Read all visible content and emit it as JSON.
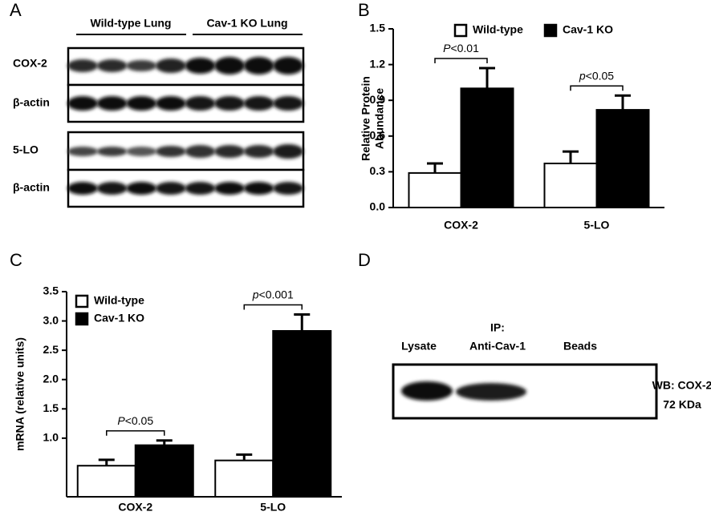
{
  "panel_labels": [
    "A",
    "B",
    "C",
    "D"
  ],
  "blot_a": {
    "groups": [
      "Wild-type Lung",
      "Cav-1 KO Lung"
    ],
    "rows": [
      "COX-2",
      "β-actin",
      "5-LO",
      "β-actin"
    ]
  },
  "blot_d": {
    "ip_label": "IP:",
    "lanes": [
      "Lysate",
      "Anti-Cav-1",
      "Beads"
    ],
    "wb_label": "WB: COX-2",
    "size_label": "72 KDa"
  },
  "chart_data": [
    {
      "type": "bar",
      "ylabel": [
        "Relative Protein",
        "Abundance"
      ],
      "categories": [
        "COX-2",
        "5-LO"
      ],
      "series": [
        {
          "name": "Wild-type",
          "color": "#ffffff",
          "values": [
            0.29,
            0.37
          ],
          "errors": [
            0.08,
            0.1
          ]
        },
        {
          "name": "Cav-1 KO",
          "color": "#000000",
          "values": [
            1.0,
            0.82
          ],
          "errors": [
            0.17,
            0.12
          ]
        }
      ],
      "annotations": [
        "P<0.01",
        "p<0.05"
      ],
      "ylim": [
        0,
        1.5
      ],
      "yticks": [
        {
          "value": 0,
          "label": "0.0"
        },
        0.3,
        0.6,
        0.9,
        1.2,
        1.5
      ],
      "legend": "top"
    },
    {
      "type": "bar",
      "ylabel": [
        "mRNA (relative units)"
      ],
      "categories": [
        "COX-2",
        "5-LO"
      ],
      "series": [
        {
          "name": "Wild-type",
          "color": "#ffffff",
          "values": [
            0.53,
            0.62
          ],
          "errors": [
            0.1,
            0.1
          ]
        },
        {
          "name": "Cav-1 KO",
          "color": "#000000",
          "values": [
            0.88,
            2.83
          ],
          "errors": [
            0.08,
            0.28
          ]
        }
      ],
      "annotations": [
        "P<0.05",
        "p<0.001"
      ],
      "ylim": [
        0,
        3.5
      ],
      "yticks": [
        {
          "value": 1,
          "label": "1.0"
        },
        1.5,
        {
          "value": 2,
          "label": "2.0"
        },
        2.5,
        {
          "value": 3,
          "label": "3.0"
        },
        3.5
      ],
      "legend": "upper left"
    }
  ]
}
